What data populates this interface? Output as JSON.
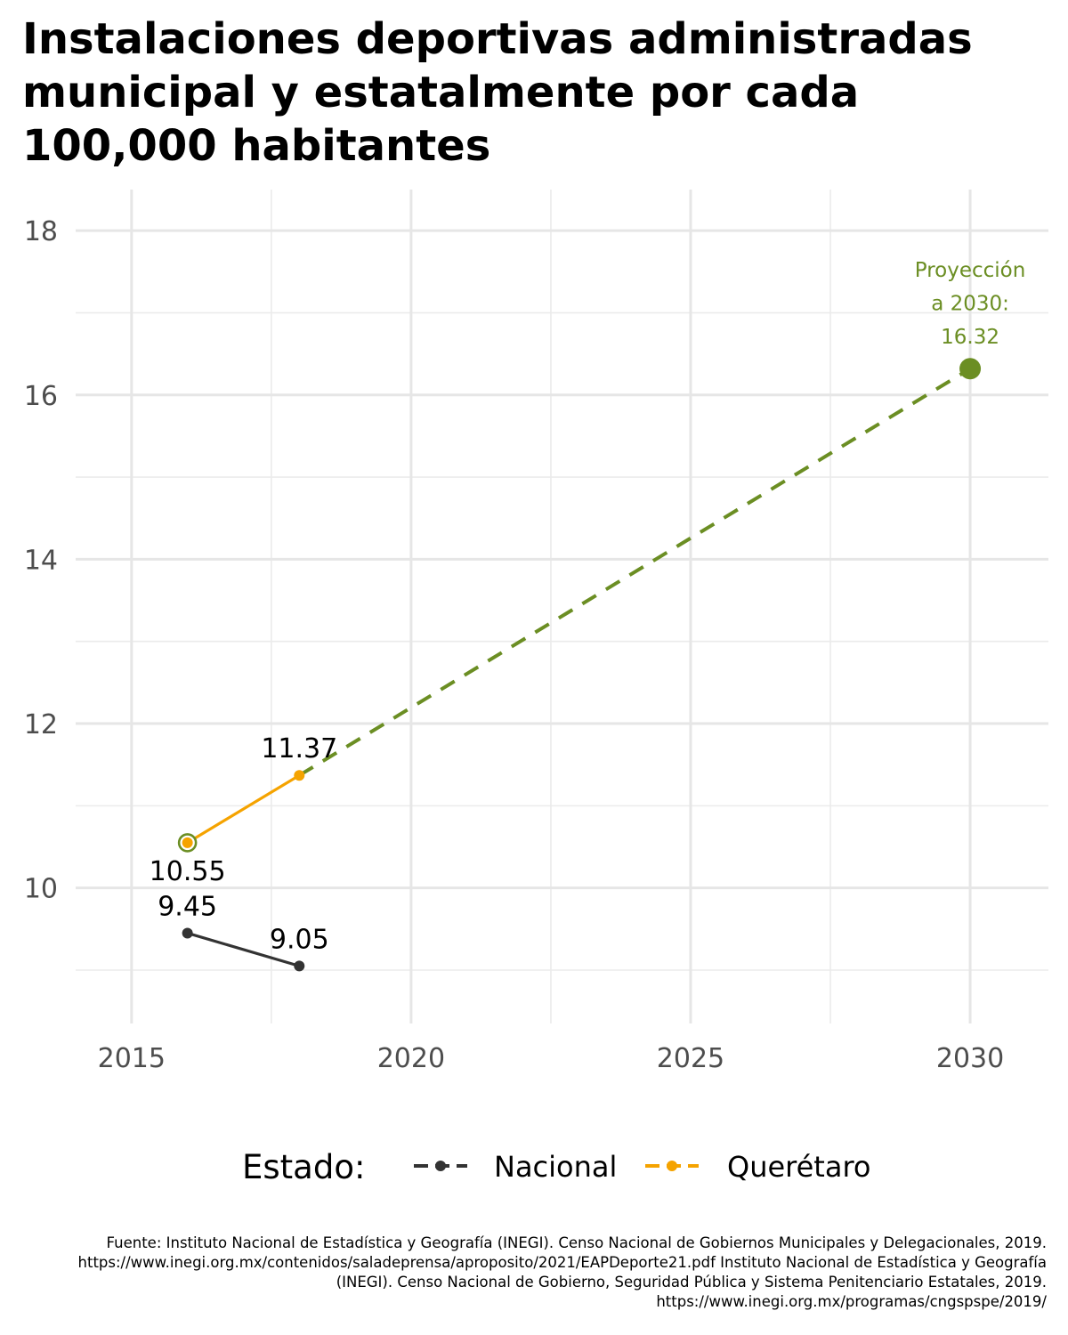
{
  "title": "Instalaciones deportivas administradas municipal y estatalmente por cada 100,000 habitantes",
  "chart_data": {
    "type": "line",
    "xlim": [
      2014.0,
      2031.4
    ],
    "ylim": [
      8.35,
      18.5
    ],
    "x_ticks": [
      2015,
      2020,
      2025,
      2030
    ],
    "y_ticks": [
      10,
      12,
      14,
      16,
      18
    ],
    "grid": true,
    "series": [
      {
        "name": "Nacional",
        "color": "#333333",
        "x": [
          2016,
          2018
        ],
        "y": [
          9.45,
          9.05
        ],
        "labels": [
          "9.45",
          "9.05"
        ]
      },
      {
        "name": "Querétaro",
        "color": "#F5A300",
        "x": [
          2016,
          2018
        ],
        "y": [
          10.55,
          11.37
        ],
        "labels": [
          "10.55",
          "11.37"
        ]
      }
    ],
    "projection": {
      "color": "#6B8E23",
      "style": "dashed",
      "from": {
        "x": 2018,
        "y": 11.37
      },
      "to": {
        "x": 2030,
        "y": 16.32
      },
      "label_lines": [
        "Proyección",
        "a 2030:",
        "16.32"
      ]
    },
    "highlight": {
      "x": 2016,
      "y": 10.55,
      "color": "#6B8E23"
    },
    "legend": {
      "title": "Estado:",
      "position": "bottom"
    }
  },
  "source": "Fuente: Instituto Nacional de Estadística y Geografía (INEGI). Censo Nacional de Gobiernos Municipales y Delegacionales, 2019. https://www.inegi.org.mx/contenidos/saladeprensa/aproposito/2021/EAPDeporte21.pdf Instituto Nacional de Estadística y Geografía (INEGI). Censo Nacional de Gobierno, Seguridad Pública y Sistema Penitenciario Estatales, 2019. https://www.inegi.org.mx/programas/cngspspe/2019/"
}
